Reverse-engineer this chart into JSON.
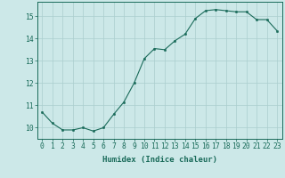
{
  "x": [
    0,
    1,
    2,
    3,
    4,
    5,
    6,
    7,
    8,
    9,
    10,
    11,
    12,
    13,
    14,
    15,
    16,
    17,
    18,
    19,
    20,
    21,
    22,
    23
  ],
  "y": [
    10.7,
    10.2,
    9.9,
    9.9,
    10.0,
    9.85,
    10.0,
    10.6,
    11.15,
    12.0,
    13.1,
    13.55,
    13.5,
    13.9,
    14.2,
    14.9,
    15.25,
    15.3,
    15.25,
    15.2,
    15.2,
    14.85,
    14.85,
    14.35
  ],
  "line_color": "#1a6b5a",
  "marker_color": "#1a6b5a",
  "bg_color": "#cce8e8",
  "grid_color": "#aacece",
  "xlabel": "Humidex (Indice chaleur)",
  "xlim": [
    -0.5,
    23.5
  ],
  "ylim": [
    9.5,
    15.65
  ],
  "yticks": [
    10,
    11,
    12,
    13,
    14,
    15
  ],
  "xticks": [
    0,
    1,
    2,
    3,
    4,
    5,
    6,
    7,
    8,
    9,
    10,
    11,
    12,
    13,
    14,
    15,
    16,
    17,
    18,
    19,
    20,
    21,
    22,
    23
  ],
  "xlabel_fontsize": 6.5,
  "tick_fontsize": 5.8,
  "line_width": 0.8,
  "marker_size": 1.8
}
